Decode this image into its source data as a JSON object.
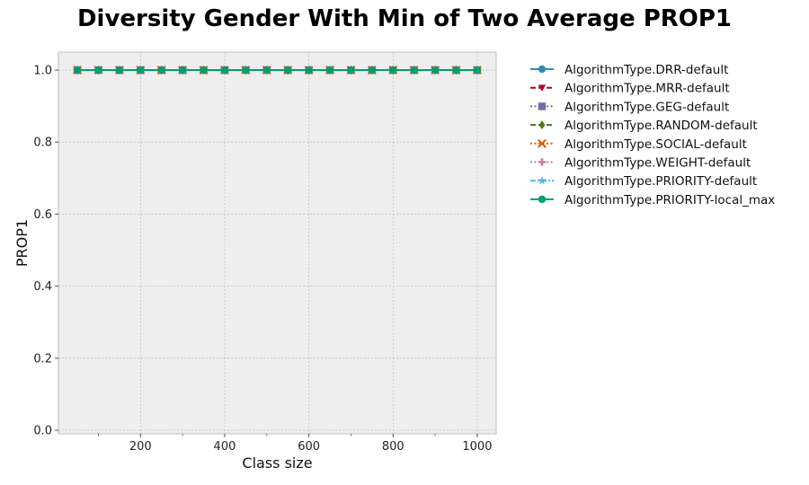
{
  "chart_data": {
    "type": "line",
    "title": "Diversity Gender With Min of Two Average PROP1",
    "xlabel": "Class size",
    "ylabel": "PROP1",
    "xlim": [
      5,
      1045
    ],
    "ylim": [
      -0.01,
      1.05
    ],
    "x_ticks": [
      200,
      400,
      600,
      800,
      1000
    ],
    "x_minor_ticks": [
      100,
      300,
      500,
      700,
      900
    ],
    "y_ticks": [
      0.0,
      0.2,
      0.4,
      0.6,
      0.8,
      1.0
    ],
    "x_tick_labels": [
      "200",
      "400",
      "600",
      "800",
      "1000"
    ],
    "y_tick_labels": [
      "0.0",
      "0.2",
      "0.4",
      "0.6",
      "0.8",
      "1.0"
    ],
    "grid": true,
    "legend_position": "outside-right",
    "x": [
      50,
      100,
      150,
      200,
      250,
      300,
      350,
      400,
      450,
      500,
      550,
      600,
      650,
      700,
      750,
      800,
      850,
      900,
      950,
      1000
    ],
    "series": [
      {
        "name": "AlgorithmType.DRR-default",
        "color": "#348abd",
        "marker": "circle",
        "dash": "solid",
        "values": [
          1,
          1,
          1,
          1,
          1,
          1,
          1,
          1,
          1,
          1,
          1,
          1,
          1,
          1,
          1,
          1,
          1,
          1,
          1,
          1
        ]
      },
      {
        "name": "AlgorithmType.MRR-default",
        "color": "#a60628",
        "marker": "triangle-down",
        "dash": "dashed",
        "values": [
          1,
          1,
          1,
          1,
          1,
          1,
          1,
          1,
          1,
          1,
          1,
          1,
          1,
          1,
          1,
          1,
          1,
          1,
          1,
          1
        ]
      },
      {
        "name": "AlgorithmType.GEG-default",
        "color": "#7a68a6",
        "marker": "square",
        "dash": "dotted",
        "values": [
          1,
          1,
          1,
          1,
          1,
          1,
          1,
          1,
          1,
          1,
          1,
          1,
          1,
          1,
          1,
          1,
          1,
          1,
          1,
          1
        ]
      },
      {
        "name": "AlgorithmType.RANDOM-default",
        "color": "#467821",
        "marker": "diamond",
        "dash": "dashed",
        "values": [
          1,
          1,
          1,
          1,
          1,
          1,
          1,
          1,
          1,
          1,
          1,
          1,
          1,
          1,
          1,
          1,
          1,
          1,
          1,
          1
        ]
      },
      {
        "name": "AlgorithmType.SOCIAL-default",
        "color": "#d55e00",
        "marker": "x",
        "dash": "dotted",
        "values": [
          1,
          1,
          1,
          1,
          1,
          1,
          1,
          1,
          1,
          1,
          1,
          1,
          1,
          1,
          1,
          1,
          1,
          1,
          1,
          1
        ]
      },
      {
        "name": "AlgorithmType.WEIGHT-default",
        "color": "#cc79a7",
        "marker": "plus",
        "dash": "dotted",
        "values": [
          1,
          1,
          1,
          1,
          1,
          1,
          1,
          1,
          1,
          1,
          1,
          1,
          1,
          1,
          1,
          1,
          1,
          1,
          1,
          1
        ]
      },
      {
        "name": "AlgorithmType.PRIORITY-default",
        "color": "#56b4e9",
        "marker": "star",
        "dash": "dashdot",
        "values": [
          1,
          1,
          1,
          1,
          1,
          1,
          1,
          1,
          1,
          1,
          1,
          1,
          1,
          1,
          1,
          1,
          1,
          1,
          1,
          1
        ]
      },
      {
        "name": "AlgorithmType.PRIORITY-local_max",
        "color": "#009e73",
        "marker": "circle",
        "dash": "solid",
        "values": [
          1,
          1,
          1,
          1,
          1,
          1,
          1,
          1,
          1,
          1,
          1,
          1,
          1,
          1,
          1,
          1,
          1,
          1,
          1,
          1
        ]
      }
    ]
  }
}
